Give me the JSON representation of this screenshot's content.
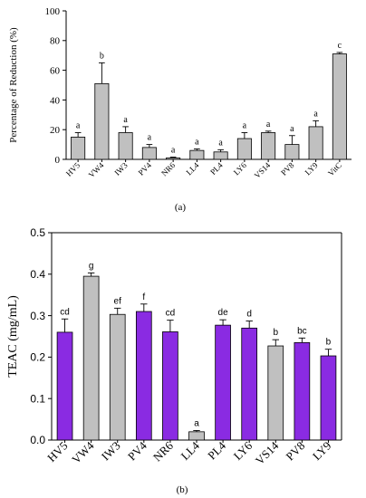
{
  "chart_data": [
    {
      "type": "bar",
      "panel_label": "(a)",
      "ylabel": "Percentage of Reduction (%)",
      "ylim": [
        0,
        100
      ],
      "yticks": [
        0,
        20,
        40,
        60,
        80,
        100
      ],
      "categories": [
        "HV5",
        "VW4",
        "IW3",
        "PV4",
        "NR6",
        "LL4",
        "PL4",
        "LY6",
        "VS14",
        "PV8",
        "LY9",
        "VitC"
      ],
      "values": [
        15,
        51,
        18,
        8,
        1,
        6,
        5,
        14,
        18,
        10,
        22,
        71
      ],
      "errors": [
        3,
        14,
        4,
        2,
        0.5,
        1,
        1.5,
        4,
        1,
        6,
        4,
        1
      ],
      "letters": [
        "a",
        "b",
        "a",
        "a",
        "a",
        "a",
        "a",
        "a",
        "a",
        "a",
        "a",
        "c"
      ],
      "bar_color": "#c0c0c0"
    },
    {
      "type": "bar",
      "panel_label": "(b)",
      "ylabel": "TEAC (mg/mL)",
      "ylim": [
        0,
        0.5
      ],
      "yticks": [
        "0.0",
        "0.1",
        "0.2",
        "0.3",
        "0.4",
        "0.5"
      ],
      "categories": [
        "HV5",
        "VW4",
        "IW3",
        "PV4",
        "NR6",
        "LL4",
        "PL4",
        "LY6",
        "VS14",
        "PV8",
        "LY9"
      ],
      "values": [
        0.26,
        0.395,
        0.303,
        0.31,
        0.261,
        0.02,
        0.277,
        0.27,
        0.227,
        0.235,
        0.203
      ],
      "errors": [
        0.032,
        0.008,
        0.015,
        0.018,
        0.028,
        0.003,
        0.013,
        0.017,
        0.015,
        0.011,
        0.016
      ],
      "letters": [
        "cd",
        "g",
        "ef",
        "f",
        "cd",
        "a",
        "de",
        "d",
        "b",
        "bc",
        "b"
      ],
      "bar_colors": [
        "#8a2be2",
        "#c0c0c0",
        "#c0c0c0",
        "#8a2be2",
        "#8a2be2",
        "#c0c0c0",
        "#8a2be2",
        "#8a2be2",
        "#c0c0c0",
        "#8a2be2",
        "#8a2be2"
      ]
    }
  ]
}
